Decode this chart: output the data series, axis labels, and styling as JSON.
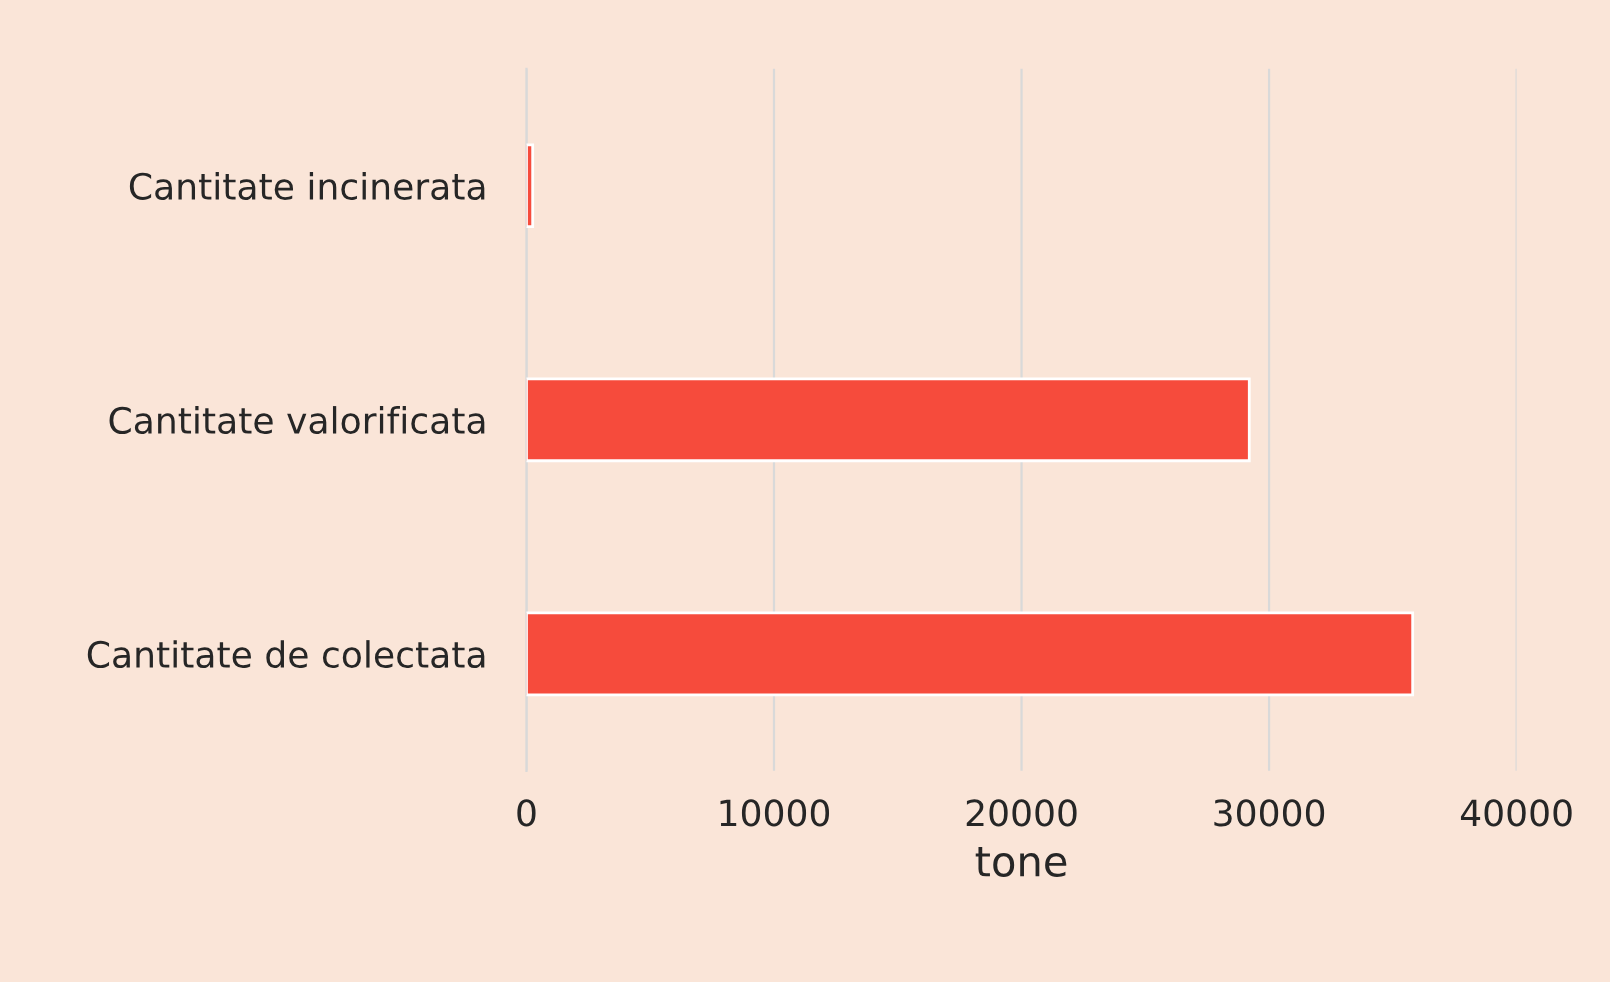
{
  "chart_data": {
    "type": "bar",
    "orientation": "horizontal",
    "categories": [
      "Cantitate incinerata",
      "Cantitate valorificata",
      "Cantitate de colectata"
    ],
    "values": [
      250,
      29200,
      35800
    ],
    "color": "#f64b3c",
    "xlabel": "tone",
    "xlim": [
      0,
      40000
    ],
    "xticks": [
      0,
      10000,
      20000,
      30000,
      40000
    ],
    "grid": "x"
  }
}
